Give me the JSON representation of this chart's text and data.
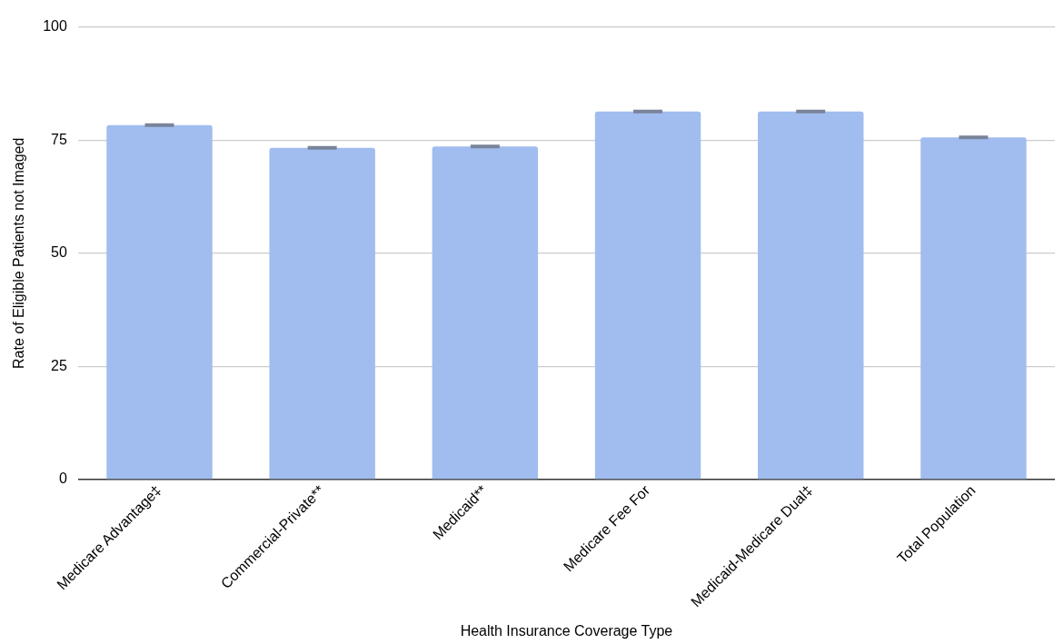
{
  "chart_data": {
    "type": "bar",
    "xlabel": "Health Insurance Coverage Type",
    "ylabel": "Rate of Eligible Patients not Imaged",
    "categories": [
      "Medicare Advantage‡",
      "Commercial-Private**",
      "Medicaid**",
      "Medicare Fee For",
      "Medicaid-Medicare Dual‡",
      "Total Population"
    ],
    "values": [
      78.3,
      73.3,
      73.6,
      81.3,
      81.3,
      75.6
    ],
    "errors": [
      0.2,
      0.2,
      0.2,
      0.2,
      0.2,
      0.2
    ],
    "color": "#a1bdef",
    "ylim": [
      0,
      100
    ],
    "yticks": [
      0,
      25,
      50,
      75,
      100
    ],
    "grid": "y",
    "legend": false
  }
}
